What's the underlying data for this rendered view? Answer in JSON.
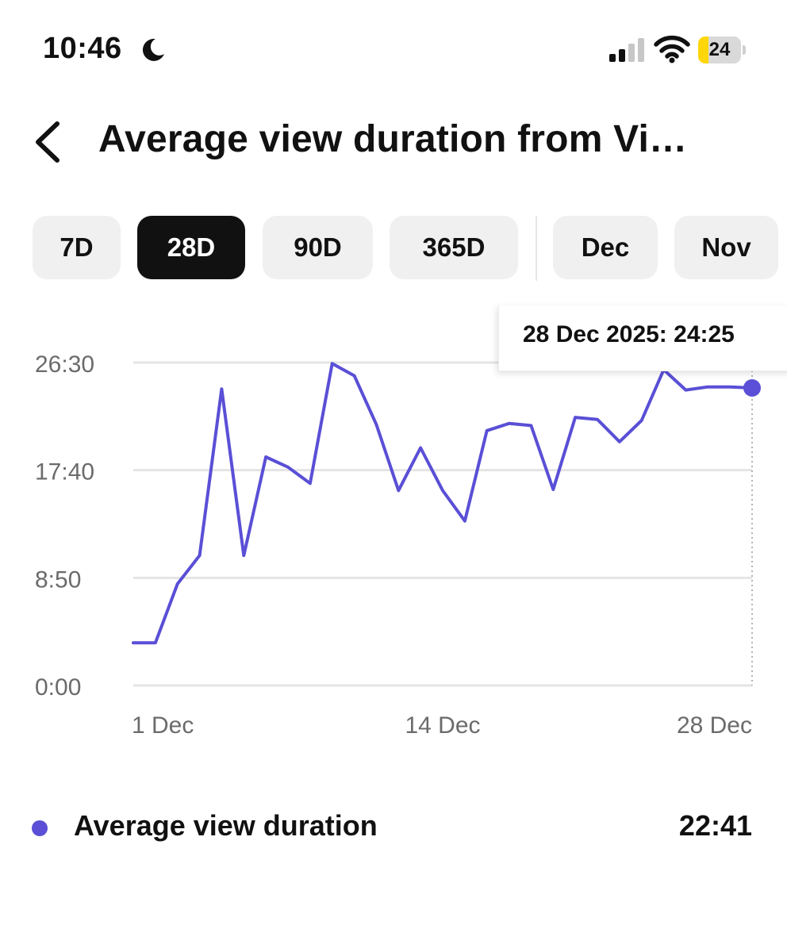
{
  "status_bar": {
    "time": "10:46",
    "battery_level": "24",
    "battery_color": "#ffd60a",
    "icons": [
      "moon-icon",
      "signal-icon",
      "wifi-icon",
      "battery-icon"
    ]
  },
  "header": {
    "title": "Average view duration from Vi…",
    "back_icon": "chevron-left-icon"
  },
  "range_tabs": [
    {
      "label": "7D",
      "active": false
    },
    {
      "label": "28D",
      "active": true
    },
    {
      "label": "90D",
      "active": false
    },
    {
      "label": "365D",
      "active": false
    },
    {
      "label": "Dec",
      "active": false
    },
    {
      "label": "Nov",
      "active": false
    }
  ],
  "tooltip": {
    "text": "28 Dec 2025: 24:25"
  },
  "legend": {
    "label": "Average view duration",
    "value": "22:41",
    "color": "#5a4fd6"
  },
  "chart_data": {
    "type": "line",
    "title": "",
    "xlabel": "",
    "ylabel": "",
    "x_tick_labels": [
      "1 Dec",
      "14 Dec",
      "28 Dec"
    ],
    "y_tick_labels": [
      "0:00",
      "8:50",
      "17:40",
      "26:30"
    ],
    "ylim_seconds": [
      0,
      1590
    ],
    "grid": true,
    "line_color": "#5a4fd6",
    "series": [
      {
        "name": "Average view duration",
        "x": [
          "30 Nov",
          "1 Dec",
          "2 Dec",
          "3 Dec",
          "4 Dec",
          "5 Dec",
          "6 Dec",
          "7 Dec",
          "8 Dec",
          "9 Dec",
          "10 Dec",
          "11 Dec",
          "12 Dec",
          "13 Dec",
          "14 Dec",
          "15 Dec",
          "16 Dec",
          "17 Dec",
          "18 Dec",
          "19 Dec",
          "20 Dec",
          "21 Dec",
          "22 Dec",
          "23 Dec",
          "24 Dec",
          "25 Dec",
          "26 Dec",
          "27 Dec",
          "28 Dec"
        ],
        "values_seconds": [
          210,
          210,
          500,
          640,
          1460,
          640,
          1125,
          1075,
          995,
          1585,
          1525,
          1285,
          960,
          1170,
          960,
          810,
          1255,
          1290,
          1280,
          965,
          1320,
          1310,
          1200,
          1305,
          1555,
          1455,
          1470,
          1470,
          1465
        ]
      }
    ],
    "highlighted_point": {
      "x": "28 Dec",
      "value_seconds": 1465
    }
  }
}
